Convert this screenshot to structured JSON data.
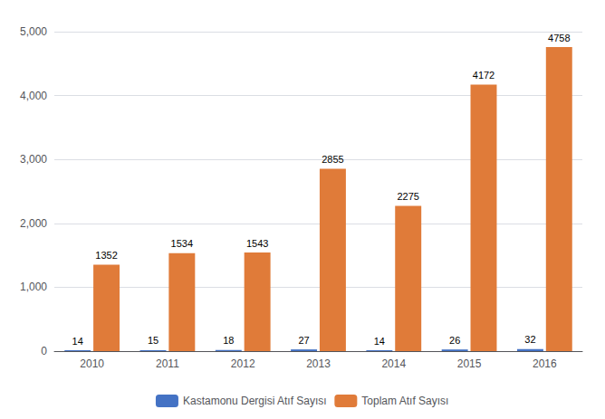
{
  "chart_data": {
    "type": "bar",
    "categories": [
      "2010",
      "2011",
      "2012",
      "2013",
      "2014",
      "2015",
      "2016"
    ],
    "series": [
      {
        "name": "Kastamonu Dergisi Atıf Sayısı",
        "color": "#4472C4",
        "values": [
          14,
          15,
          18,
          27,
          14,
          26,
          32
        ]
      },
      {
        "name": "Toplam Atıf Sayısı",
        "color": "#E07B39",
        "values": [
          1352,
          1534,
          1543,
          2855,
          2275,
          4172,
          4758
        ]
      }
    ],
    "ylim": [
      0,
      5000
    ],
    "yticks": [
      0,
      1000,
      2000,
      3000,
      4000,
      5000
    ],
    "grid": true,
    "legend": "bottom",
    "data_labels": true
  }
}
